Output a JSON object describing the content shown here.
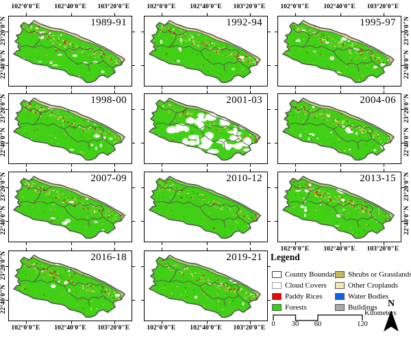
{
  "figure": {
    "background": "#ffffff"
  },
  "axis": {
    "lon_ticks": [
      "102°0'0\"E",
      "102°40'0\"E",
      "103°20'0\"E"
    ],
    "lat_ticks": [
      "23°20'0\"N",
      "22°40'0\"N"
    ]
  },
  "panels": [
    {
      "label": "1989-91",
      "band": 0.95,
      "khaki": 1.0,
      "red": 40,
      "clouds": "medium"
    },
    {
      "label": "1992-94",
      "band": 0.95,
      "khaki": 1.0,
      "red": 40,
      "clouds": "light"
    },
    {
      "label": "1995-97",
      "band": 0.9,
      "khaki": 0.95,
      "red": 38,
      "clouds": "medium"
    },
    {
      "label": "1998-00",
      "band": 0.85,
      "khaki": 0.9,
      "red": 32,
      "clouds": "light"
    },
    {
      "label": "2001-03",
      "band": 0.55,
      "khaki": 0.7,
      "red": 26,
      "clouds": "heavy"
    },
    {
      "label": "2004-06",
      "band": 0.7,
      "khaki": 0.9,
      "red": 34,
      "clouds": "medium"
    },
    {
      "label": "2007-09",
      "band": 0.7,
      "khaki": 0.8,
      "red": 30,
      "clouds": "light"
    },
    {
      "label": "2010-12",
      "band": 0.35,
      "khaki": 0.55,
      "red": 18,
      "clouds": "none"
    },
    {
      "label": "2013-15",
      "band": 0.5,
      "khaki": 0.9,
      "red": 45,
      "clouds": "medium"
    },
    {
      "label": "2016-18",
      "band": 0.55,
      "khaki": 0.8,
      "red": 40,
      "clouds": "light"
    },
    {
      "label": "2019-21",
      "band": 0.6,
      "khaki": 0.85,
      "red": 30,
      "clouds": "light"
    }
  ],
  "legend": {
    "title": "Legend",
    "items_left": [
      {
        "label": "County Boundary",
        "color": "#ffffff",
        "border": "#3c3c3c"
      },
      {
        "label": "Cloud Covers",
        "color": "#ffffff",
        "border": "#9a9a9a"
      },
      {
        "label": "Paddy Rices",
        "color": "#ee0400",
        "border": "#555555"
      },
      {
        "label": "Forests",
        "color": "#2fd60e",
        "border": "#555555"
      }
    ],
    "items_right": [
      {
        "label": "Shrubs or Grasslands",
        "color": "#c6ba58",
        "border": "#555555"
      },
      {
        "label": "Other Croplands",
        "color": "#f3e5b5",
        "border": "#555555"
      },
      {
        "label": "Water Bodies",
        "color": "#0a64e6",
        "border": "#555555"
      },
      {
        "label": "Buildings",
        "color": "#a9a9a9",
        "border": "#555555"
      }
    ],
    "scalebar": {
      "ticks": [
        "0",
        "30",
        "60",
        "120"
      ],
      "unit": "Kilometers"
    },
    "north_label": "N"
  },
  "colors": {
    "forest": "#41d015",
    "boundary": "#4f4f4f",
    "band": "#e9d79e",
    "khaki": "#c3b554",
    "wheat": "#ecdaa4",
    "red": "#dd1400",
    "cloud": "#ffffff",
    "dark_green": "#2fae12"
  }
}
